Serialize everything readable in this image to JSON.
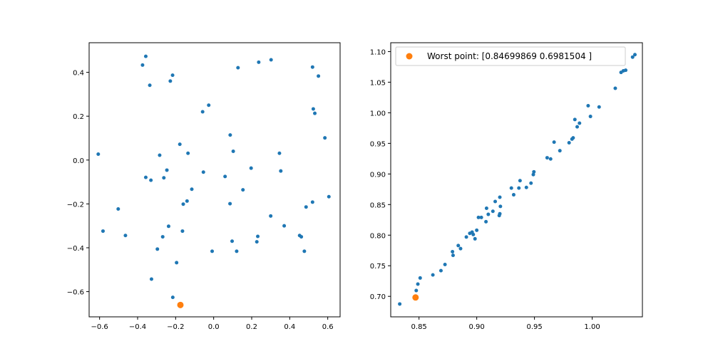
{
  "colors": {
    "points": "#1f77b4",
    "worst": "#ff7f0e"
  },
  "chart_data": [
    {
      "type": "scatter",
      "title": "",
      "xlabel": "",
      "ylabel": "",
      "xlim": [
        -0.655,
        0.665
      ],
      "ylim": [
        -0.715,
        0.535
      ],
      "xticks": [
        -0.6,
        -0.4,
        -0.2,
        0.0,
        0.2,
        0.4,
        0.6
      ],
      "xtick_labels": [
        "−0.6",
        "−0.4",
        "−0.2",
        "0.0",
        "0.2",
        "0.4",
        "0.6"
      ],
      "yticks": [
        -0.6,
        -0.4,
        -0.2,
        0.0,
        0.2,
        0.4
      ],
      "ytick_labels": [
        "−0.6",
        "−0.4",
        "−0.2",
        "0.0",
        "0.2",
        "0.4"
      ],
      "grid": false,
      "series": [
        {
          "points": [
            [
              -0.357,
              0.473
            ],
            [
              -0.374,
              0.433
            ],
            [
              -0.216,
              0.387
            ],
            [
              -0.336,
              0.341
            ],
            [
              -0.228,
              0.36
            ],
            [
              0.128,
              0.421
            ],
            [
              0.237,
              0.446
            ],
            [
              0.302,
              0.457
            ],
            [
              0.52,
              0.424
            ],
            [
              0.551,
              0.383
            ],
            [
              -0.026,
              0.25
            ],
            [
              -0.058,
              0.22
            ],
            [
              0.524,
              0.233
            ],
            [
              0.532,
              0.213
            ],
            [
              0.585,
              0.101
            ],
            [
              0.087,
              0.114
            ],
            [
              -0.178,
              0.072
            ],
            [
              0.103,
              0.04
            ],
            [
              -0.607,
              0.027
            ],
            [
              -0.284,
              0.022
            ],
            [
              -0.135,
              0.031
            ],
            [
              0.346,
              0.031
            ],
            [
              -0.246,
              -0.046
            ],
            [
              -0.054,
              -0.055
            ],
            [
              0.353,
              -0.05
            ],
            [
              -0.357,
              -0.079
            ],
            [
              -0.262,
              -0.081
            ],
            [
              -0.33,
              -0.092
            ],
            [
              0.06,
              -0.075
            ],
            [
              0.197,
              -0.037
            ],
            [
              0.154,
              -0.136
            ],
            [
              -0.115,
              -0.133
            ],
            [
              -0.14,
              -0.187
            ],
            [
              -0.16,
              -0.201
            ],
            [
              0.086,
              -0.199
            ],
            [
              0.52,
              -0.192
            ],
            [
              0.606,
              -0.167
            ],
            [
              0.486,
              -0.214
            ],
            [
              -0.502,
              -0.223
            ],
            [
              0.3,
              -0.255
            ],
            [
              -0.237,
              -0.302
            ],
            [
              0.371,
              -0.3
            ],
            [
              -0.582,
              -0.324
            ],
            [
              -0.164,
              -0.324
            ],
            [
              -0.464,
              -0.344
            ],
            [
              -0.268,
              -0.35
            ],
            [
              0.232,
              -0.348
            ],
            [
              0.452,
              -0.344
            ],
            [
              0.461,
              -0.35
            ],
            [
              0.097,
              -0.37
            ],
            [
              0.227,
              -0.373
            ],
            [
              -0.296,
              -0.406
            ],
            [
              -0.008,
              -0.416
            ],
            [
              0.121,
              -0.416
            ],
            [
              0.477,
              -0.416
            ],
            [
              -0.195,
              -0.468
            ],
            [
              -0.327,
              -0.543
            ],
            [
              -0.215,
              -0.626
            ]
          ]
        },
        {
          "points": [
            [
              -0.175,
              -0.661
            ]
          ]
        }
      ]
    },
    {
      "type": "scatter",
      "title": "",
      "xlabel": "",
      "ylabel": "",
      "xlim": [
        0.8255,
        1.0435
      ],
      "ylim": [
        0.6665,
        1.1145
      ],
      "xticks": [
        0.85,
        0.9,
        0.95,
        1.0
      ],
      "xtick_labels": [
        "0.85",
        "0.90",
        "0.95",
        "1.00"
      ],
      "yticks": [
        0.7,
        0.75,
        0.8,
        0.85,
        0.9,
        0.95,
        1.0,
        1.05,
        1.1
      ],
      "ytick_labels": [
        "0.70",
        "0.75",
        "0.80",
        "0.85",
        "0.90",
        "0.95",
        "1.00",
        "1.05",
        "1.10"
      ],
      "grid": false,
      "legend_position": "top-left",
      "series": [
        {
          "points": [
            [
              0.8333,
              0.6875
            ],
            [
              0.8476,
              0.7095
            ],
            [
              0.849,
              0.72
            ],
            [
              0.851,
              0.73
            ],
            [
              0.862,
              0.735
            ],
            [
              0.869,
              0.742
            ],
            [
              0.8725,
              0.752
            ],
            [
              0.879,
              0.773
            ],
            [
              0.8795,
              0.767
            ],
            [
              0.884,
              0.783
            ],
            [
              0.886,
              0.778
            ],
            [
              0.891,
              0.797
            ],
            [
              0.894,
              0.803
            ],
            [
              0.896,
              0.805
            ],
            [
              0.897,
              0.801
            ],
            [
              0.8985,
              0.794
            ],
            [
              0.9,
              0.808
            ],
            [
              0.9015,
              0.829
            ],
            [
              0.904,
              0.829
            ],
            [
              0.908,
              0.822
            ],
            [
              0.9085,
              0.844
            ],
            [
              0.91,
              0.834
            ],
            [
              0.914,
              0.839
            ],
            [
              0.916,
              0.855
            ],
            [
              0.9195,
              0.832
            ],
            [
              0.92,
              0.835
            ],
            [
              0.92,
              0.862
            ],
            [
              0.9205,
              0.847
            ],
            [
              0.93,
              0.877
            ],
            [
              0.932,
              0.866
            ],
            [
              0.9365,
              0.877
            ],
            [
              0.9375,
              0.889
            ],
            [
              0.943,
              0.878
            ],
            [
              0.947,
              0.885
            ],
            [
              0.949,
              0.899
            ],
            [
              0.9495,
              0.9035
            ],
            [
              0.961,
              0.9265
            ],
            [
              0.964,
              0.9245
            ],
            [
              0.967,
              0.952
            ],
            [
              0.972,
              0.938
            ],
            [
              0.98,
              0.951
            ],
            [
              0.9825,
              0.957
            ],
            [
              0.9835,
              0.959
            ],
            [
              0.985,
              0.989
            ],
            [
              0.987,
              0.977
            ],
            [
              0.989,
              0.983
            ],
            [
              0.9965,
              1.0115
            ],
            [
              0.9985,
              0.994
            ],
            [
              1.006,
              1.0095
            ],
            [
              1.02,
              1.04
            ],
            [
              1.025,
              1.066
            ],
            [
              1.027,
              1.0685
            ],
            [
              1.029,
              1.0695
            ],
            [
              1.035,
              1.091
            ],
            [
              1.037,
              1.095
            ]
          ]
        },
        {
          "name": "Worst point: [0.84699869 0.6981504 ]",
          "points": [
            [
              0.84699869,
              0.6981504
            ]
          ]
        }
      ]
    }
  ]
}
